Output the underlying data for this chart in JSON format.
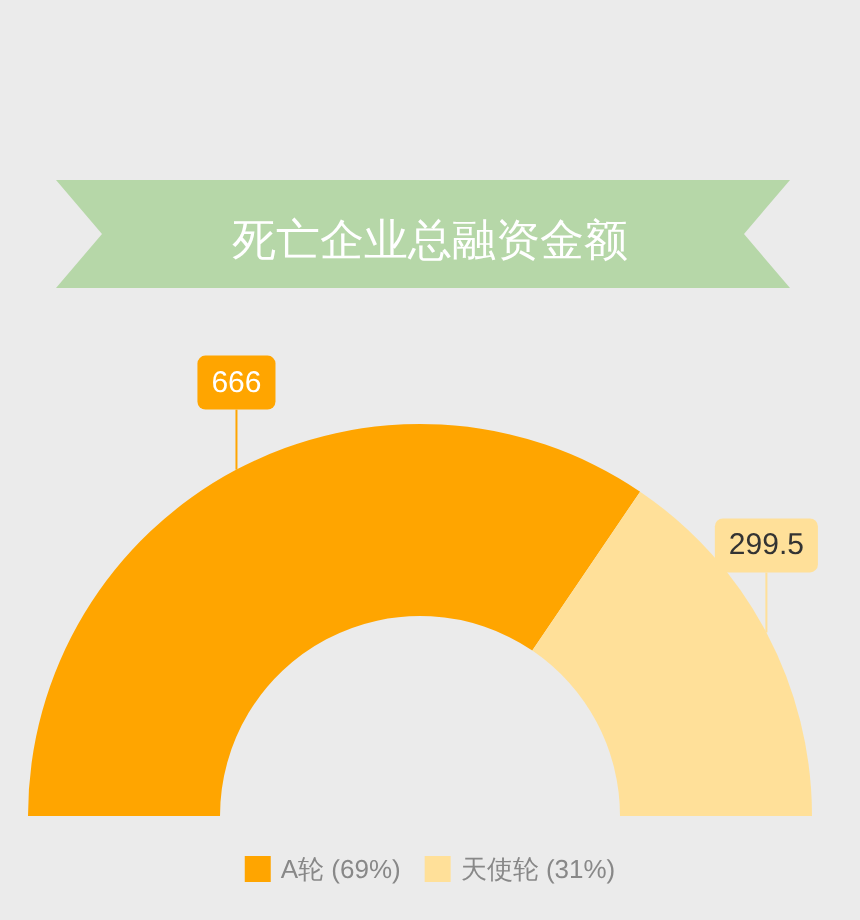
{
  "chart_data": {
    "type": "donut",
    "title": "死亡企业总融资金额",
    "categories": [
      "A轮 (69%)",
      "天使轮 (31%)"
    ],
    "values": [
      666,
      299.5
    ],
    "colors": [
      "#ffa500",
      "#ffe099"
    ],
    "data_labels": true,
    "legend": "bottom"
  }
}
